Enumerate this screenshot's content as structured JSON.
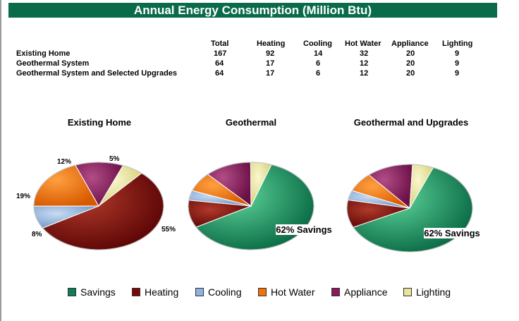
{
  "title": "Annual Energy Consumption (Million Btu)",
  "table": {
    "headers": [
      "Total",
      "Heating",
      "Cooling",
      "Hot Water",
      "Appliance",
      "Lighting"
    ],
    "rows": [
      {
        "label": "Existing Home",
        "values": [
          "167",
          "92",
          "14",
          "32",
          "20",
          "9"
        ]
      },
      {
        "label": "Geothermal System",
        "values": [
          "64",
          "17",
          "6",
          "12",
          "20",
          "9"
        ]
      },
      {
        "label": "Geothermal System and Selected Upgrades",
        "values": [
          "64",
          "17",
          "6",
          "12",
          "20",
          "9"
        ]
      }
    ]
  },
  "legend": [
    {
      "name": "Savings",
      "color": "#0f7d55"
    },
    {
      "name": "Heating",
      "color": "#7a0a0a"
    },
    {
      "name": "Cooling",
      "color": "#8fb3e0"
    },
    {
      "name": "Hot Water",
      "color": "#f0700a"
    },
    {
      "name": "Appliance",
      "color": "#8a1a5a"
    },
    {
      "name": "Lighting",
      "color": "#e8e49a"
    }
  ],
  "chart_data": [
    {
      "type": "pie",
      "title": "Existing Home",
      "slices": [
        {
          "category": "Heating",
          "value": 92,
          "label": "55%"
        },
        {
          "category": "Cooling",
          "value": 14,
          "label": "8%"
        },
        {
          "category": "Hot Water",
          "value": 32,
          "label": "19%"
        },
        {
          "category": "Appliance",
          "value": 20,
          "label": "12%"
        },
        {
          "category": "Lighting",
          "value": 9,
          "label": "5%"
        }
      ]
    },
    {
      "type": "pie",
      "title": "Geothermal",
      "slices": [
        {
          "category": "Savings",
          "value": 103,
          "label": "62% Savings"
        },
        {
          "category": "Heating",
          "value": 17,
          "label": ""
        },
        {
          "category": "Cooling",
          "value": 6,
          "label": ""
        },
        {
          "category": "Hot Water",
          "value": 12,
          "label": ""
        },
        {
          "category": "Appliance",
          "value": 20,
          "label": ""
        },
        {
          "category": "Lighting",
          "value": 9,
          "label": ""
        }
      ]
    },
    {
      "type": "pie",
      "title": "Geothermal and Upgrades",
      "slices": [
        {
          "category": "Savings",
          "value": 103,
          "label": "62% Savings"
        },
        {
          "category": "Heating",
          "value": 17,
          "label": ""
        },
        {
          "category": "Cooling",
          "value": 6,
          "label": ""
        },
        {
          "category": "Hot Water",
          "value": 12,
          "label": ""
        },
        {
          "category": "Appliance",
          "value": 20,
          "label": ""
        },
        {
          "category": "Lighting",
          "value": 9,
          "label": ""
        }
      ]
    }
  ]
}
